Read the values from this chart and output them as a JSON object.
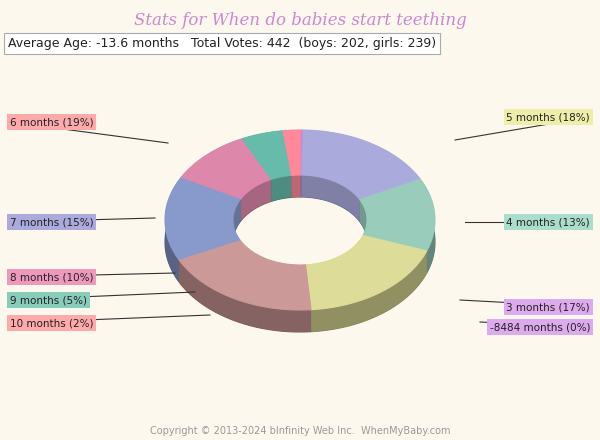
{
  "title": "Stats for When do babies start teething",
  "subtitle": "Average Age: -13.6 months   Total Votes: 442  (boys: 202, girls: 239)",
  "copyright": "Copyright © 2013-2024 bInfinity Web Inc.  WhenMyBaby.com",
  "background_color": "#fdf8ee",
  "title_color": "#cc88cc",
  "subtitle_color": "#222222",
  "copyright_color": "#999999",
  "labels": [
    "-8484 months (0%)",
    "3 months (17%)",
    "4 months (13%)",
    "5 months (18%)",
    "6 months (19%)",
    "7 months (15%)",
    "8 months (10%)",
    "9 months (5%)",
    "10 months (2%)"
  ],
  "values": [
    0.4,
    17,
    13,
    18,
    19,
    15,
    10,
    5,
    2
  ],
  "colors": [
    "#cc88cc",
    "#aaaadd",
    "#99ccbb",
    "#dddd99",
    "#cc9999",
    "#8899cc",
    "#dd88aa",
    "#66bbaa",
    "#ff8899"
  ],
  "label_bg_colors": [
    "#ddaaee",
    "#ddaaee",
    "#aaddcc",
    "#eeeeaa",
    "#ffaaaa",
    "#aaaadd",
    "#ee99bb",
    "#88ccbb",
    "#ffaaaa"
  ],
  "startangle": 90
}
